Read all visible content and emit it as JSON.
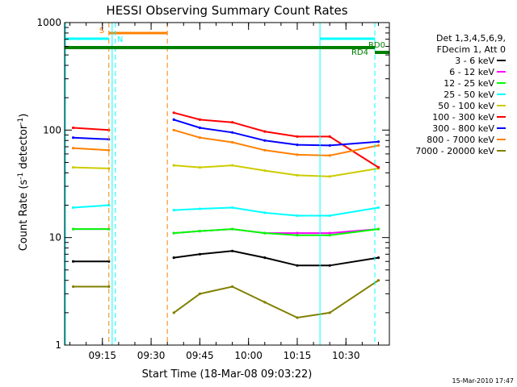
{
  "chart_data": {
    "type": "line",
    "title": "HESSI Observing Summary Count Rates",
    "xlabel": "Start Time (18-Mar-08 09:03:22)",
    "ylabel_main": "Count Rate (s",
    "ylabel_sup1": "-1",
    "ylabel_mid": " detector",
    "ylabel_sup2": "-1",
    "ylabel_end": ")",
    "y_scale": "log",
    "ylim": [
      1,
      1000
    ],
    "xlim": [
      "09:03:22",
      "10:43:22"
    ],
    "x_ticks": [
      "09:15",
      "09:30",
      "09:45",
      "10:00",
      "10:15",
      "10:30"
    ],
    "y_ticks": [
      "1",
      "10",
      "100",
      "1000"
    ],
    "legend_title": [
      "Det 1,3,4,5,6,9,",
      "FDecim 1, Att 0"
    ],
    "legend_position": "right",
    "timestamp": "15-Mar-2010 17:47",
    "state_labels": {
      "S": "S",
      "N": "N",
      "RD0": "RD0",
      "RD4": "RD4"
    },
    "series": [
      {
        "name": "3 - 6 keV",
        "color": "#000000",
        "values": [
          6,
          6,
          6.5,
          7,
          7.5,
          6.5,
          5.5,
          5.5,
          6.5
        ]
      },
      {
        "name": "6 - 12 keV",
        "color": "#ff00ff",
        "values": [
          12,
          12,
          11,
          11.5,
          12,
          11,
          11,
          11,
          12
        ]
      },
      {
        "name": "12 - 25 keV",
        "color": "#00ff00",
        "values": [
          12,
          12,
          11,
          11.5,
          12,
          11,
          10.5,
          10.5,
          12
        ]
      },
      {
        "name": "25 - 50 keV",
        "color": "#00ffff",
        "values": [
          19,
          20,
          18,
          18.5,
          19,
          17,
          16,
          16,
          19
        ]
      },
      {
        "name": "50 - 100 keV",
        "color": "#cccc00",
        "values": [
          45,
          44,
          47,
          45,
          47,
          42,
          38,
          37,
          44
        ]
      },
      {
        "name": "100 - 300 keV",
        "color": "#ff0000",
        "values": [
          105,
          100,
          145,
          125,
          118,
          97,
          87,
          87,
          45
        ]
      },
      {
        "name": "300 - 800 keV",
        "color": "#0000ff",
        "values": [
          85,
          82,
          125,
          105,
          95,
          80,
          73,
          72,
          78
        ]
      },
      {
        "name": "800 - 7000 keV",
        "color": "#ff8000",
        "values": [
          68,
          65,
          100,
          85,
          77,
          65,
          59,
          58,
          72
        ]
      },
      {
        "name": "7000 - 20000 keV",
        "color": "#808000",
        "values": [
          3.5,
          3.5,
          2,
          3,
          3.5,
          2.5,
          1.8,
          2,
          4
        ]
      }
    ],
    "x": [
      "09:06",
      "09:17",
      "09:37",
      "09:45",
      "09:55",
      "10:05",
      "10:15",
      "10:25",
      "10:40"
    ]
  }
}
